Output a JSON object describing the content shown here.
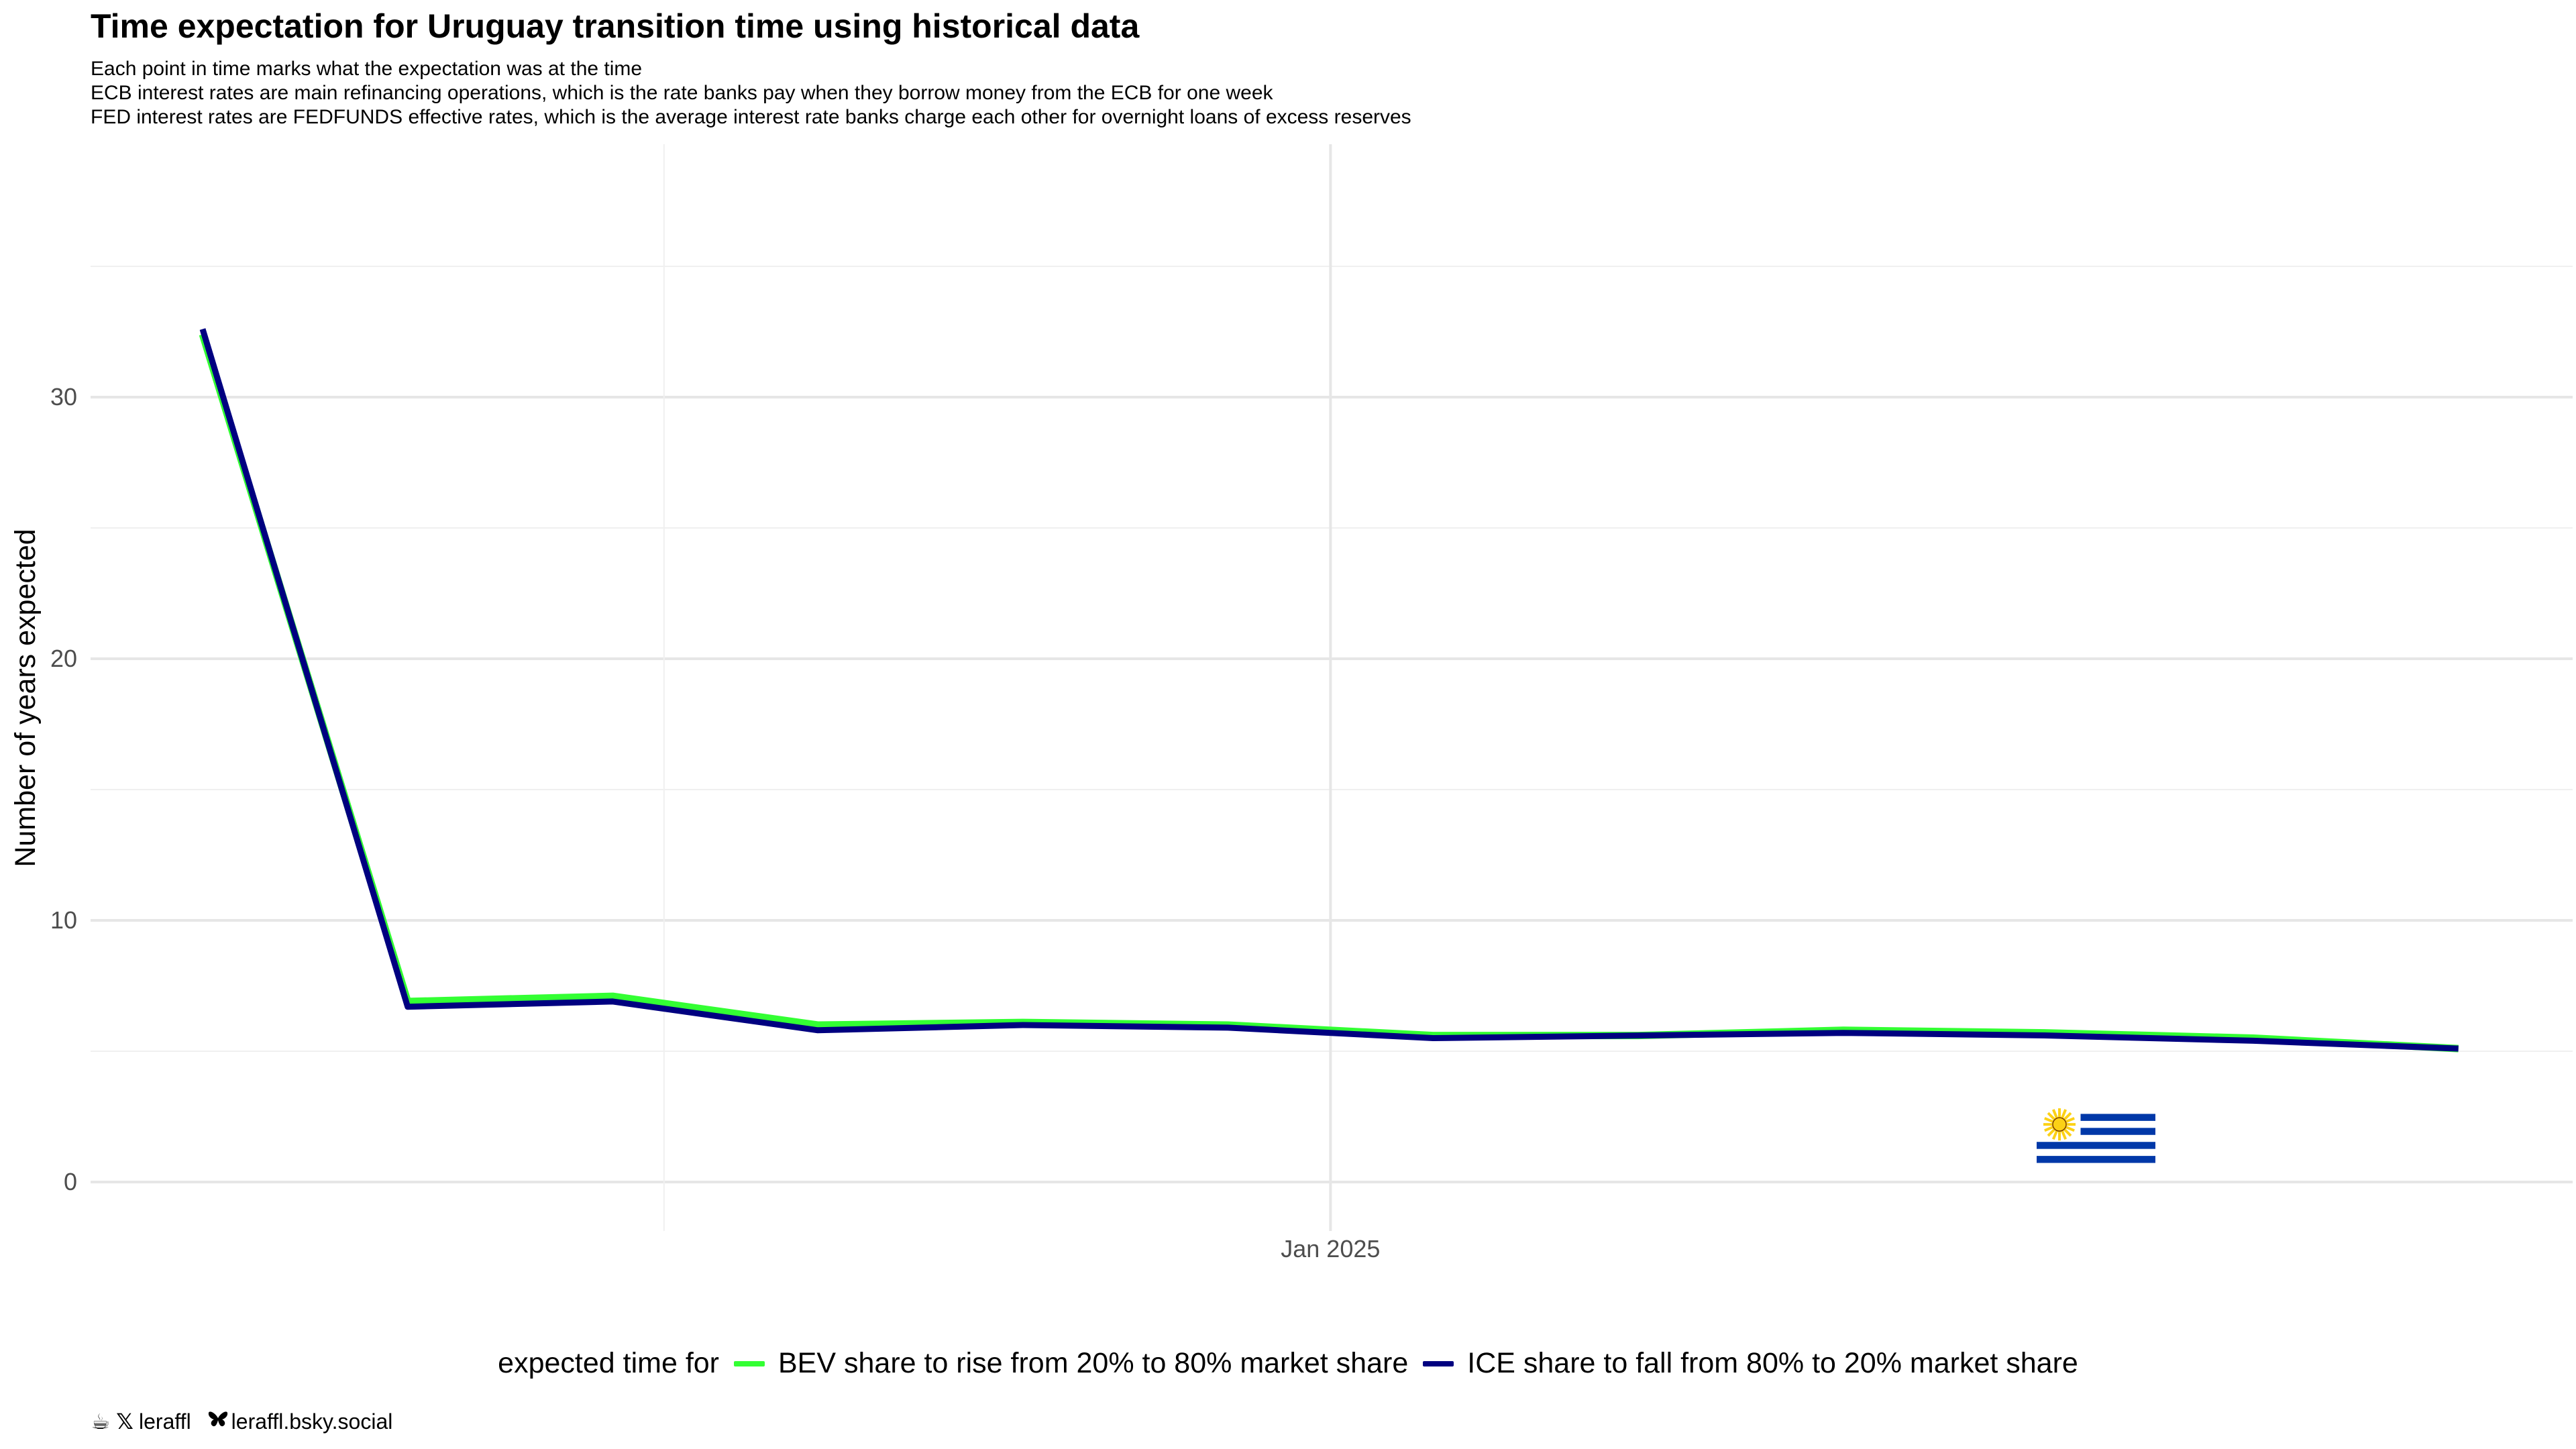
{
  "title": "Time expectation for Uruguay transition time using historical data",
  "subtitle_lines": [
    "Each point in time marks what the expectation was at the time",
    "ECB interest rates are main refinancing operations, which is the rate banks pay when they borrow money from the ECB for one week",
    "FED interest rates are FEDFUNDS effective rates, which is the average interest rate banks charge each other for overnight loans of excess reserves"
  ],
  "legend": {
    "title": "expected time for",
    "items": [
      {
        "label": "BEV share to rise from 20% to 80% market share",
        "color": "#33ff33"
      },
      {
        "label": "ICE share to fall from 80% to 20% market share",
        "color": "#000080"
      }
    ]
  },
  "caption": {
    "handle_x": "leraffl",
    "handle_bsky": "leraffl.bsky.social",
    "icons": [
      "coffee-icon",
      "x-logo-icon",
      "butterfly-icon"
    ]
  },
  "flag": "uruguay-flag",
  "chart_data": {
    "type": "line",
    "x_label_ticks": [
      "Jan 2025"
    ],
    "x": [
      "2024-02",
      "2024-04",
      "2024-06",
      "2024-08",
      "2024-10",
      "2024-12",
      "2025-02",
      "2025-04",
      "2025-06",
      "2025-08",
      "2025-10",
      "2025-12"
    ],
    "ylabel": "Number of years expected",
    "xlabel": "",
    "ylim": [
      -1.9,
      39.6
    ],
    "y_ticks": [
      0,
      10,
      20,
      30
    ],
    "grid": true,
    "legend_position": "bottom",
    "series": [
      {
        "name": "BEV share to rise from 20% to 80% market share",
        "color": "#33ff33",
        "values": [
          32.4,
          6.9,
          7.1,
          6.0,
          6.1,
          6.0,
          5.6,
          5.6,
          5.8,
          5.7,
          5.5,
          5.1
        ]
      },
      {
        "name": "ICE share to fall from 80% to 20% market share",
        "color": "#000080",
        "values": [
          32.6,
          6.7,
          6.9,
          5.8,
          6.0,
          5.9,
          5.5,
          5.6,
          5.7,
          5.6,
          5.4,
          5.1
        ]
      }
    ]
  }
}
